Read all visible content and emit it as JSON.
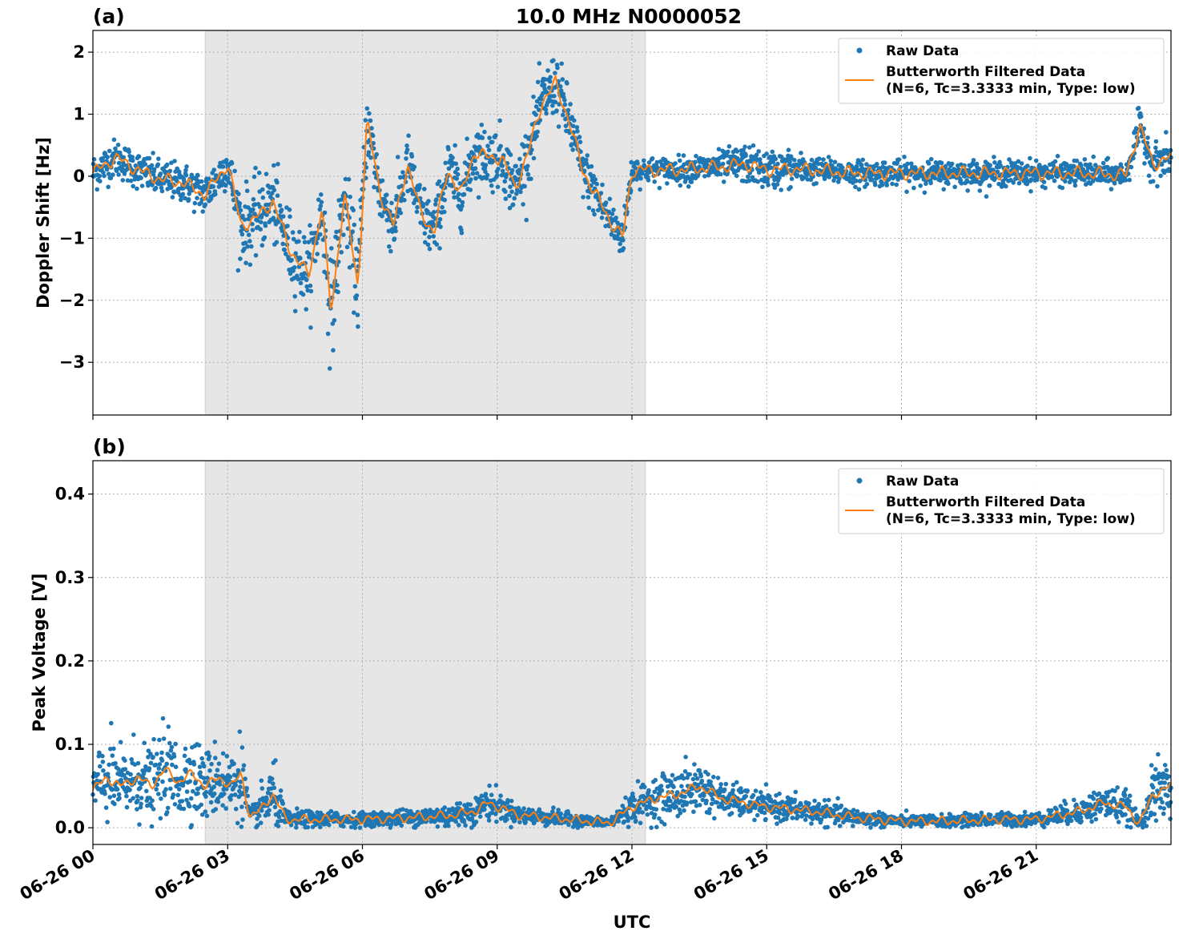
{
  "title": "10.0 MHz N0000052",
  "xlabel": "UTC",
  "x_ticks": [
    "06-26 00",
    "06-26 03",
    "06-26 06",
    "06-26 09",
    "06-26 12",
    "06-26 15",
    "06-26 18",
    "06-26 21"
  ],
  "colors": {
    "raw": "#1f77b4",
    "filtered": "#ff7f0e",
    "shade": "#e6e6e6"
  },
  "legend": {
    "raw_label": "Raw Data",
    "filtered_label_1": "Butterworth Filtered Data",
    "filtered_label_2": "(N=6, Tc=3.3333 min, Type: low)"
  },
  "chart_data": [
    {
      "panel": "(a)",
      "type": "scatter",
      "ylabel": "Doppler Shift [Hz]",
      "yticks": [
        2,
        1,
        0,
        -1,
        -2,
        -3
      ],
      "ytick_labels": [
        "2",
        "1",
        "0",
        "−1",
        "−2",
        "−3"
      ],
      "xlim_hours": [
        0,
        24
      ],
      "ylim": [
        -3.85,
        2.35
      ],
      "shaded_interval_hours": [
        2.5,
        12.3
      ],
      "grid": true,
      "legend_position": "top-right",
      "series": [
        {
          "name": "Raw Data",
          "x_hours": [
            0,
            0.5,
            1,
            1.5,
            2,
            2.5,
            3,
            3.3,
            3.6,
            4,
            4.4,
            4.8,
            5.1,
            5.3,
            5.6,
            5.9,
            6.1,
            6.4,
            6.7,
            7,
            7.3,
            7.6,
            7.9,
            8.2,
            8.5,
            8.8,
            9.1,
            9.4,
            9.7,
            10,
            10.3,
            10.6,
            10.9,
            11.2,
            11.5,
            11.8,
            12,
            12.3,
            13,
            14,
            14.5,
            15,
            15.5,
            16,
            17,
            18,
            19,
            20,
            21,
            22,
            23,
            23.3,
            23.6,
            24
          ],
          "center": [
            0.05,
            0.3,
            0.1,
            -0.05,
            -0.1,
            -0.3,
            0.2,
            -0.8,
            -0.7,
            -0.4,
            -1.2,
            -1.6,
            -0.5,
            -2.2,
            -0.3,
            -1.8,
            0.9,
            -0.3,
            -0.8,
            0.2,
            -0.6,
            -0.9,
            0.1,
            -0.3,
            0.4,
            0.3,
            0.3,
            -0.2,
            0.4,
            1.2,
            1.5,
            0.9,
            0.1,
            -0.3,
            -0.7,
            -1.0,
            0.1,
            0.1,
            0.1,
            0.15,
            0.2,
            0.1,
            0.12,
            0.1,
            0.05,
            0.05,
            0.05,
            0.05,
            0.05,
            0.05,
            0.02,
            0.8,
            0.2,
            0.3
          ],
          "spread": [
            0.3,
            0.3,
            0.3,
            0.3,
            0.3,
            0.35,
            0.35,
            0.6,
            0.6,
            0.6,
            0.6,
            0.6,
            0.6,
            0.9,
            0.6,
            0.7,
            0.6,
            0.5,
            0.5,
            0.5,
            0.5,
            0.5,
            0.5,
            0.5,
            0.5,
            0.5,
            0.5,
            0.5,
            0.5,
            0.5,
            0.5,
            0.5,
            0.4,
            0.4,
            0.4,
            0.3,
            0.25,
            0.2,
            0.2,
            0.25,
            0.3,
            0.3,
            0.3,
            0.2,
            0.2,
            0.2,
            0.2,
            0.2,
            0.2,
            0.2,
            0.2,
            0.3,
            0.3,
            0.3
          ]
        },
        {
          "name": "Butterworth Filtered Data\n(N=6, Tc=3.3333 min, Type: low)",
          "x_hours": [
            0,
            0.5,
            1,
            1.5,
            2,
            2.5,
            3,
            3.3,
            3.6,
            4,
            4.4,
            4.8,
            5.1,
            5.3,
            5.6,
            5.9,
            6.1,
            6.4,
            6.7,
            7,
            7.3,
            7.6,
            7.9,
            8.2,
            8.5,
            8.8,
            9.1,
            9.4,
            9.7,
            10,
            10.3,
            10.6,
            10.9,
            11.2,
            11.5,
            11.8,
            12,
            12.3,
            13,
            14,
            14.5,
            15,
            15.5,
            16,
            17,
            18,
            19,
            20,
            21,
            22,
            23,
            23.3,
            23.6,
            24
          ],
          "y": [
            0.05,
            0.3,
            0.1,
            -0.05,
            -0.1,
            -0.3,
            0.2,
            -0.8,
            -0.7,
            -0.4,
            -1.2,
            -1.6,
            -0.5,
            -2.2,
            -0.3,
            -1.8,
            0.9,
            -0.3,
            -0.8,
            0.2,
            -0.6,
            -0.9,
            0.1,
            -0.3,
            0.4,
            0.3,
            0.3,
            -0.2,
            0.4,
            1.2,
            1.5,
            0.9,
            0.1,
            -0.3,
            -0.7,
            -1.0,
            0.1,
            0.1,
            0.1,
            0.15,
            0.2,
            0.1,
            0.12,
            0.1,
            0.05,
            0.05,
            0.05,
            0.05,
            0.05,
            0.05,
            0.02,
            0.8,
            0.2,
            0.3
          ]
        }
      ]
    },
    {
      "panel": "(b)",
      "type": "scatter",
      "ylabel": "Peak Voltage [V]",
      "yticks": [
        0.4,
        0.3,
        0.2,
        0.1,
        0.0
      ],
      "ytick_labels": [
        "0.4",
        "0.3",
        "0.2",
        "0.1",
        "0.0"
      ],
      "xlim_hours": [
        0,
        24
      ],
      "ylim": [
        -0.02,
        0.44
      ],
      "shaded_interval_hours": [
        2.5,
        12.3
      ],
      "grid": true,
      "legend_position": "top-right",
      "series": [
        {
          "name": "Raw Data",
          "x_hours": [
            0,
            0.3,
            0.6,
            1,
            1.3,
            1.6,
            1.9,
            2.2,
            2.5,
            2.8,
            3.1,
            3.3,
            3.5,
            3.7,
            4,
            4.3,
            5,
            6,
            7,
            8,
            8.5,
            8.8,
            9.5,
            10,
            11,
            11.5,
            12,
            12.5,
            13,
            13.5,
            14,
            15,
            16,
            17,
            18,
            19,
            20,
            21,
            22,
            22.5,
            23,
            23.3,
            23.6,
            24
          ],
          "center": [
            0.045,
            0.06,
            0.05,
            0.06,
            0.05,
            0.07,
            0.055,
            0.065,
            0.05,
            0.06,
            0.05,
            0.065,
            0.012,
            0.02,
            0.04,
            0.01,
            0.01,
            0.01,
            0.012,
            0.015,
            0.02,
            0.03,
            0.015,
            0.013,
            0.008,
            0.006,
            0.025,
            0.035,
            0.04,
            0.05,
            0.035,
            0.025,
            0.02,
            0.012,
            0.008,
            0.008,
            0.01,
            0.01,
            0.02,
            0.03,
            0.025,
            0.005,
            0.04,
            0.05
          ],
          "spread": [
            0.035,
            0.05,
            0.04,
            0.05,
            0.04,
            0.05,
            0.05,
            0.05,
            0.04,
            0.045,
            0.04,
            0.05,
            0.01,
            0.02,
            0.04,
            0.01,
            0.01,
            0.008,
            0.01,
            0.015,
            0.015,
            0.02,
            0.01,
            0.01,
            0.006,
            0.005,
            0.02,
            0.025,
            0.03,
            0.03,
            0.02,
            0.015,
            0.015,
            0.01,
            0.007,
            0.007,
            0.008,
            0.008,
            0.015,
            0.02,
            0.02,
            0.005,
            0.035,
            0.04
          ]
        },
        {
          "name": "Butterworth Filtered Data\n(N=6, Tc=3.3333 min, Type: low)",
          "x_hours": [
            0,
            0.3,
            0.6,
            1,
            1.3,
            1.6,
            1.9,
            2.2,
            2.5,
            2.8,
            3.1,
            3.3,
            3.5,
            3.7,
            4,
            4.3,
            5,
            6,
            7,
            8,
            8.5,
            8.8,
            9.5,
            10,
            11,
            11.5,
            12,
            12.5,
            13,
            13.5,
            14,
            15,
            16,
            17,
            18,
            19,
            20,
            21,
            22,
            22.5,
            23,
            23.3,
            23.6,
            24
          ],
          "y": [
            0.045,
            0.06,
            0.05,
            0.06,
            0.05,
            0.07,
            0.055,
            0.065,
            0.05,
            0.06,
            0.05,
            0.065,
            0.012,
            0.02,
            0.04,
            0.01,
            0.01,
            0.01,
            0.012,
            0.015,
            0.02,
            0.03,
            0.015,
            0.013,
            0.008,
            0.006,
            0.025,
            0.035,
            0.04,
            0.05,
            0.035,
            0.025,
            0.02,
            0.012,
            0.008,
            0.008,
            0.01,
            0.01,
            0.02,
            0.03,
            0.025,
            0.005,
            0.04,
            0.05
          ]
        }
      ]
    }
  ]
}
